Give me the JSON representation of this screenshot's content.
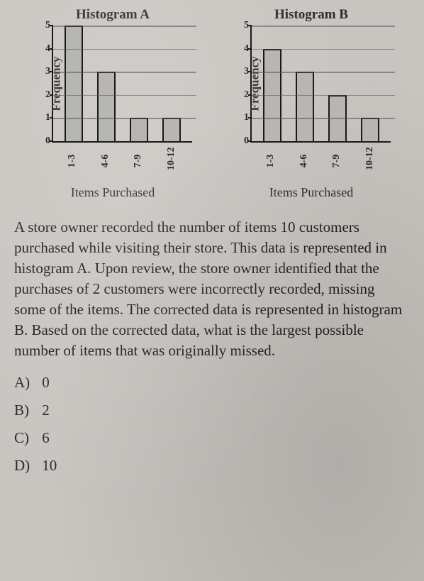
{
  "histogramA": {
    "title": "Histogram A",
    "ylabel": "Frequency",
    "xlabel": "Items Purchased",
    "ymax": 5,
    "yticks": [
      0,
      1,
      2,
      3,
      4,
      5
    ],
    "categories": [
      "1-3",
      "4-6",
      "7-9",
      "10-12"
    ],
    "values": [
      5,
      3,
      1,
      1
    ],
    "bar_fill": "#b8b6b1",
    "bar_border": "#1a1a1a",
    "axis_color": "#1a1a1a",
    "grid_color": "#555555"
  },
  "histogramB": {
    "title": "Histogram B",
    "ylabel": "Frequency",
    "xlabel": "Items Purchased",
    "ymax": 5,
    "yticks": [
      0,
      1,
      2,
      3,
      4,
      5
    ],
    "categories": [
      "1-3",
      "4-6",
      "7-9",
      "10-12"
    ],
    "values": [
      4,
      3,
      2,
      1
    ],
    "bar_fill": "#b8b6b1",
    "bar_border": "#1a1a1a",
    "axis_color": "#1a1a1a",
    "grid_color": "#555555"
  },
  "question_text": "A store owner recorded the number of items 10 customers purchased while visiting their store. This data is represented in histogram A. Upon review, the store owner identified that the purchases of 2 customers were incorrectly recorded, missing some of the items. The corrected data is represented in histogram B. Based on the corrected data, what is the largest possible number of items that was originally missed.",
  "options": [
    {
      "letter": "A)",
      "value": "0"
    },
    {
      "letter": "B)",
      "value": "2"
    },
    {
      "letter": "C)",
      "value": "6"
    },
    {
      "letter": "D)",
      "value": "10"
    }
  ],
  "style": {
    "background": "#c8c5c0",
    "text_color": "#1f1d1b",
    "title_fontsize": 19,
    "body_fontsize": 21,
    "tick_fontsize": 14,
    "font_family": "Georgia, Times New Roman, serif"
  }
}
